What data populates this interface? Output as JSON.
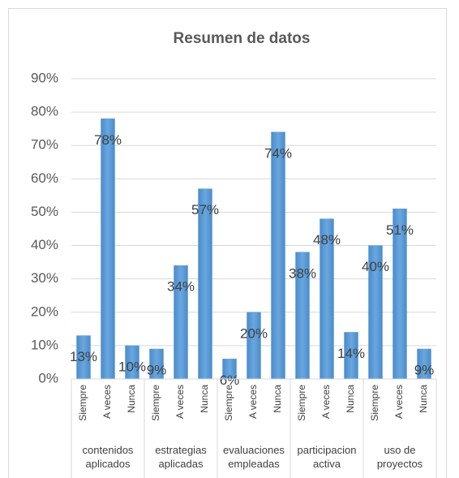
{
  "chart_data": {
    "type": "bar",
    "title": "Resumen de datos",
    "groups": [
      "contenidos aplicados",
      "estrategias aplicadas",
      "evaluaciones empleadas",
      "participacion activa",
      "uso de proyectos"
    ],
    "categories": [
      "Siempre",
      "A veces",
      "Nunca",
      "Siempre",
      "A veces",
      "Nunca",
      "Siempre",
      "A veces",
      "Nunca",
      "Siempre",
      "A veces",
      "Nunca",
      "Siempre",
      "A veces",
      "Nunca"
    ],
    "values": [
      13,
      78,
      10,
      9,
      34,
      57,
      6,
      20,
      74,
      38,
      48,
      14,
      40,
      51,
      9
    ],
    "value_labels": [
      "13%",
      "78%",
      "10%",
      "9%",
      "34%",
      "57%",
      "6%",
      "20%",
      "74%",
      "38%",
      "48%",
      "14%",
      "40%",
      "51%",
      "9%"
    ],
    "color": "#5b9bd5",
    "ylim": [
      0,
      90
    ],
    "yticks": [
      {
        "value": 0,
        "label": "0%"
      },
      {
        "value": 10,
        "label": "10%"
      },
      {
        "value": 20,
        "label": "20%"
      },
      {
        "value": 30,
        "label": "30%"
      },
      {
        "value": 40,
        "label": "40%"
      },
      {
        "value": 50,
        "label": "50%"
      },
      {
        "value": 60,
        "label": "60%"
      },
      {
        "value": 70,
        "label": "70%"
      },
      {
        "value": 80,
        "label": "80%"
      },
      {
        "value": 90,
        "label": "90%"
      }
    ],
    "grid": true
  }
}
